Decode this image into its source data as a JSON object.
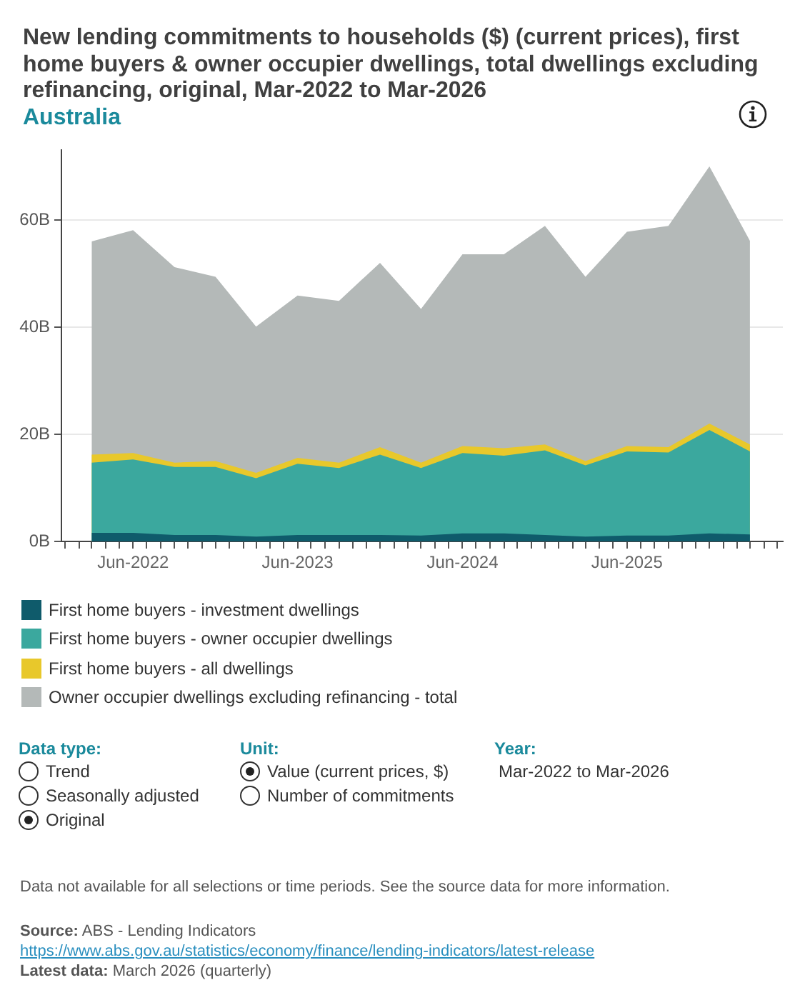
{
  "chart_data": {
    "type": "area",
    "title": "New lending commitments to households ($) (current prices), first home buyers & owner occupier dwellings, total dwellings excluding refinancing, original, Mar-2022 to Mar-2026",
    "subtitle": "Australia",
    "x": [
      "2022-03",
      "2022-06",
      "2022-09",
      "2022-12",
      "2023-03",
      "2023-06",
      "2023-09",
      "2023-12",
      "2024-03",
      "2024-06",
      "2024-09",
      "2024-12",
      "2025-03",
      "2025-06",
      "2025-09",
      "2025-12",
      "2026-03"
    ],
    "series": [
      {
        "name": "First home buyers - investment dwellings",
        "color": "#0f5b6b",
        "values": [
          1.6,
          1.6,
          1.2,
          1.2,
          0.9,
          1.2,
          1.2,
          1.2,
          1.1,
          1.5,
          1.5,
          1.2,
          0.9,
          1.1,
          1.1,
          1.5,
          1.3
        ]
      },
      {
        "name": "First home buyers - owner occupier dwellings",
        "color": "#3ba89e",
        "values": [
          14.7,
          15.3,
          13.9,
          13.9,
          11.8,
          14.5,
          13.7,
          16.2,
          13.7,
          16.5,
          16.0,
          17.0,
          14.2,
          16.8,
          16.6,
          20.8,
          16.8
        ]
      },
      {
        "name": "First home buyers - all dwellings",
        "color": "#e8c82b",
        "values": [
          16.2,
          16.5,
          14.7,
          15.0,
          12.8,
          15.6,
          14.7,
          17.6,
          14.7,
          17.8,
          17.4,
          18.1,
          15.0,
          17.8,
          17.6,
          22.0,
          18.1
        ]
      },
      {
        "name": "Owner occupier dwellings excluding refinancing - total",
        "color": "#b4b9b8",
        "values": [
          56.0,
          58.1,
          51.2,
          49.4,
          40.1,
          45.9,
          44.9,
          52.0,
          43.4,
          53.6,
          53.6,
          58.9,
          49.4,
          57.8,
          58.9,
          70.0,
          56.1
        ]
      }
    ],
    "xlim": [
      "2021-12-24",
      "2026-05-13"
    ],
    "xticks": [
      {
        "value": "2022-01",
        "label": null
      },
      {
        "value": "2022-02",
        "label": null
      },
      {
        "value": "2022-03",
        "label": null
      },
      {
        "value": "2022-04",
        "label": null
      },
      {
        "value": "2022-05",
        "label": null
      },
      {
        "value": "2022-06",
        "label": "Jun-2022"
      },
      {
        "value": "2022-07",
        "label": null
      },
      {
        "value": "2022-08",
        "label": null
      },
      {
        "value": "2022-09",
        "label": null
      },
      {
        "value": "2022-10",
        "label": null
      },
      {
        "value": "2022-11",
        "label": null
      },
      {
        "value": "2022-12",
        "label": null
      },
      {
        "value": "2023-01",
        "label": null
      },
      {
        "value": "2023-02",
        "label": null
      },
      {
        "value": "2023-03",
        "label": null
      },
      {
        "value": "2023-04",
        "label": null
      },
      {
        "value": "2023-05",
        "label": null
      },
      {
        "value": "2023-06",
        "label": "Jun-2023"
      },
      {
        "value": "2023-07",
        "label": null
      },
      {
        "value": "2023-08",
        "label": null
      },
      {
        "value": "2023-09",
        "label": null
      },
      {
        "value": "2023-10",
        "label": null
      },
      {
        "value": "2023-11",
        "label": null
      },
      {
        "value": "2023-12",
        "label": null
      },
      {
        "value": "2024-01",
        "label": null
      },
      {
        "value": "2024-02",
        "label": null
      },
      {
        "value": "2024-03",
        "label": null
      },
      {
        "value": "2024-04",
        "label": null
      },
      {
        "value": "2024-05",
        "label": null
      },
      {
        "value": "2024-06",
        "label": "Jun-2024"
      },
      {
        "value": "2024-07",
        "label": null
      },
      {
        "value": "2024-08",
        "label": null
      },
      {
        "value": "2024-09",
        "label": null
      },
      {
        "value": "2024-10",
        "label": null
      },
      {
        "value": "2024-11",
        "label": null
      },
      {
        "value": "2024-12",
        "label": null
      },
      {
        "value": "2025-01",
        "label": null
      },
      {
        "value": "2025-02",
        "label": null
      },
      {
        "value": "2025-03",
        "label": null
      },
      {
        "value": "2025-04",
        "label": null
      },
      {
        "value": "2025-05",
        "label": null
      },
      {
        "value": "2025-06",
        "label": "Jun-2025"
      },
      {
        "value": "2025-07",
        "label": null
      },
      {
        "value": "2025-08",
        "label": null
      },
      {
        "value": "2025-09",
        "label": null
      },
      {
        "value": "2025-10",
        "label": null
      },
      {
        "value": "2025-11",
        "label": null
      },
      {
        "value": "2025-12",
        "label": null
      },
      {
        "value": "2026-01",
        "label": null
      },
      {
        "value": "2026-02",
        "label": null
      },
      {
        "value": "2026-03",
        "label": null
      },
      {
        "value": "2026-04",
        "label": null
      },
      {
        "value": "2026-05",
        "label": null
      }
    ],
    "ylim": [
      0,
      73
    ],
    "yticks": [
      {
        "value": 0,
        "label": "0B"
      },
      {
        "value": 20,
        "label": "20B"
      },
      {
        "value": 40,
        "label": "40B"
      },
      {
        "value": 60,
        "label": "60B"
      }
    ],
    "grid": "y",
    "legend": "bottom",
    "annotations": [
      "Data type:",
      "Trend",
      "Seasonally adjusted",
      "Original",
      "Unit:",
      "Value (current prices, $)",
      "Number of commitments",
      "Year:",
      "Mar-2022 to Mar-2026",
      "Data not available for all selections or time periods. See the source data for more information.",
      "Source:",
      "ABS - Lending Indicators",
      "https://www.abs.gov.au/statistics/economy/finance/lending-indicators/latest-release",
      "Latest data:",
      "March 2026 (quarterly)"
    ]
  }
}
